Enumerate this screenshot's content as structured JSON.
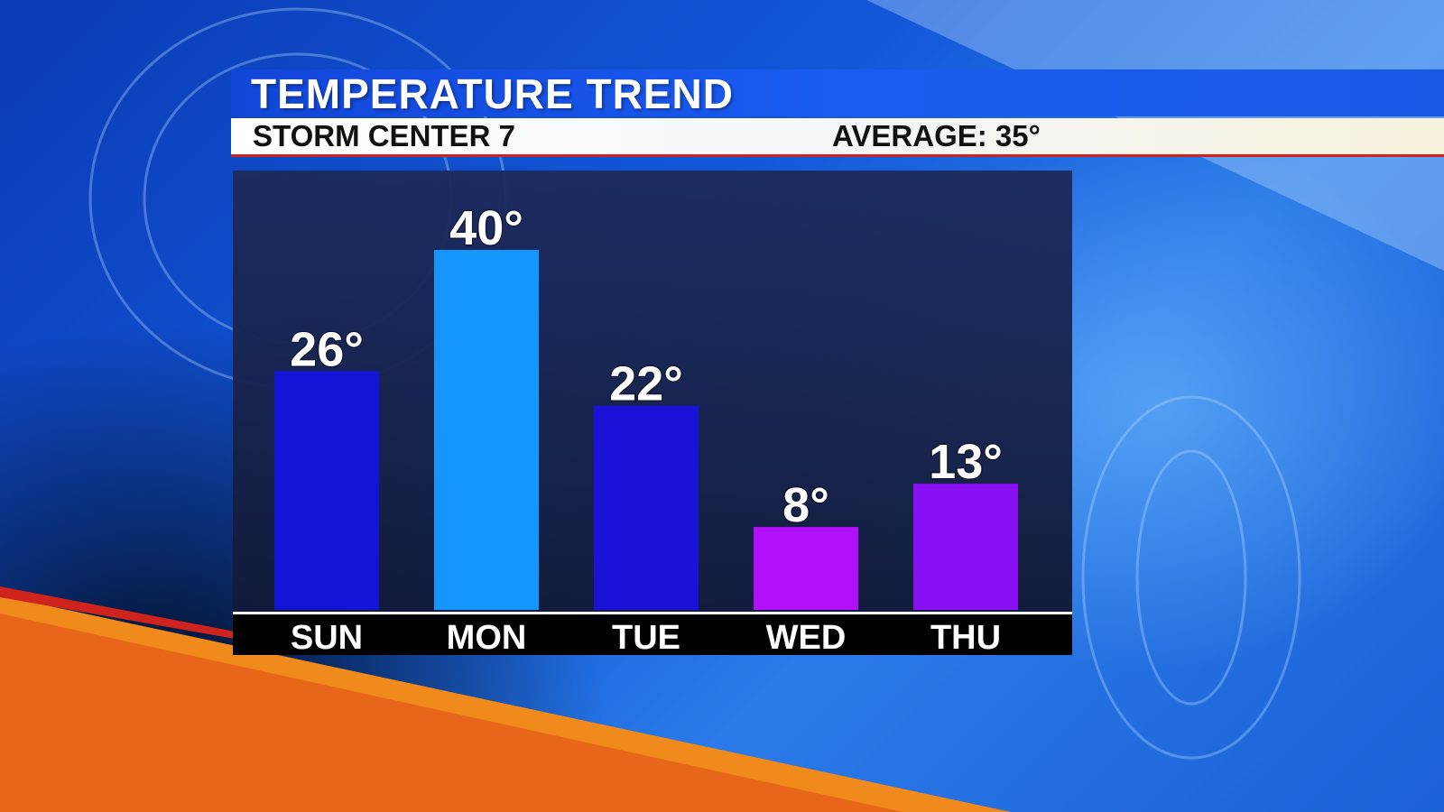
{
  "header": {
    "title": "TEMPERATURE TREND",
    "station": "STORM CENTER 7",
    "average": "AVERAGE: 35°"
  },
  "colors": {
    "header_blue": "#1a55ea",
    "accent_red": "#d0231e",
    "orange_swoosh": "#f08a1c"
  },
  "chart_data": {
    "type": "bar",
    "categories": [
      "SUN",
      "MON",
      "TUE",
      "WED",
      "THU"
    ],
    "values": [
      26,
      40,
      22,
      8,
      13
    ],
    "value_labels": [
      "26°",
      "40°",
      "22°",
      "8°",
      "13°"
    ],
    "bar_colors": [
      "#1414d6",
      "#1596ff",
      "#1b12d8",
      "#b10efa",
      "#8a10f4"
    ],
    "title": "TEMPERATURE TREND",
    "xlabel": "",
    "ylabel": "",
    "ylim": [
      -2,
      40
    ],
    "grid": false
  }
}
